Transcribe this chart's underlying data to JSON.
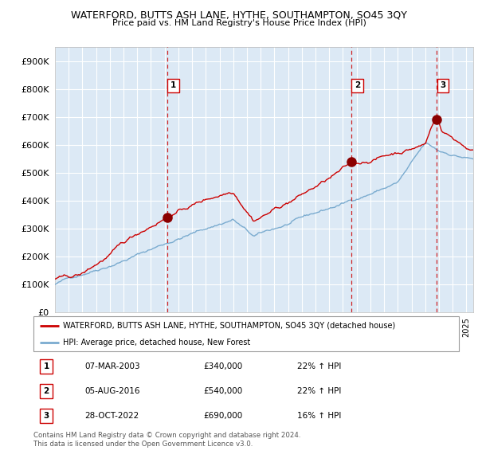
{
  "title": "WATERFORD, BUTTS ASH LANE, HYTHE, SOUTHAMPTON, SO45 3QY",
  "subtitle": "Price paid vs. HM Land Registry's House Price Index (HPI)",
  "plot_bg_color": "#dce9f5",
  "grid_color": "#ffffff",
  "red_line_color": "#cc0000",
  "blue_line_color": "#7aabcf",
  "yticks": [
    0,
    100000,
    200000,
    300000,
    400000,
    500000,
    600000,
    700000,
    800000,
    900000
  ],
  "ytick_labels": [
    "£0",
    "£100K",
    "£200K",
    "£300K",
    "£400K",
    "£500K",
    "£600K",
    "£700K",
    "£800K",
    "£900K"
  ],
  "xlim_start": 1995.0,
  "xlim_end": 2025.5,
  "ylim_min": 0,
  "ylim_max": 950000,
  "sale_dates": [
    2003.18,
    2016.59,
    2022.82
  ],
  "sale_prices": [
    340000,
    540000,
    690000
  ],
  "sale_labels": [
    "1",
    "2",
    "3"
  ],
  "sale_info": [
    {
      "num": "1",
      "date": "07-MAR-2003",
      "price": "£340,000",
      "pct": "22% ↑ HPI"
    },
    {
      "num": "2",
      "date": "05-AUG-2016",
      "price": "£540,000",
      "pct": "22% ↑ HPI"
    },
    {
      "num": "3",
      "date": "28-OCT-2022",
      "price": "£690,000",
      "pct": "16% ↑ HPI"
    }
  ],
  "legend_line1": "WATERFORD, BUTTS ASH LANE, HYTHE, SOUTHAMPTON, SO45 3QY (detached house)",
  "legend_line2": "HPI: Average price, detached house, New Forest",
  "footnote": "Contains HM Land Registry data © Crown copyright and database right 2024.\nThis data is licensed under the Open Government Licence v3.0."
}
